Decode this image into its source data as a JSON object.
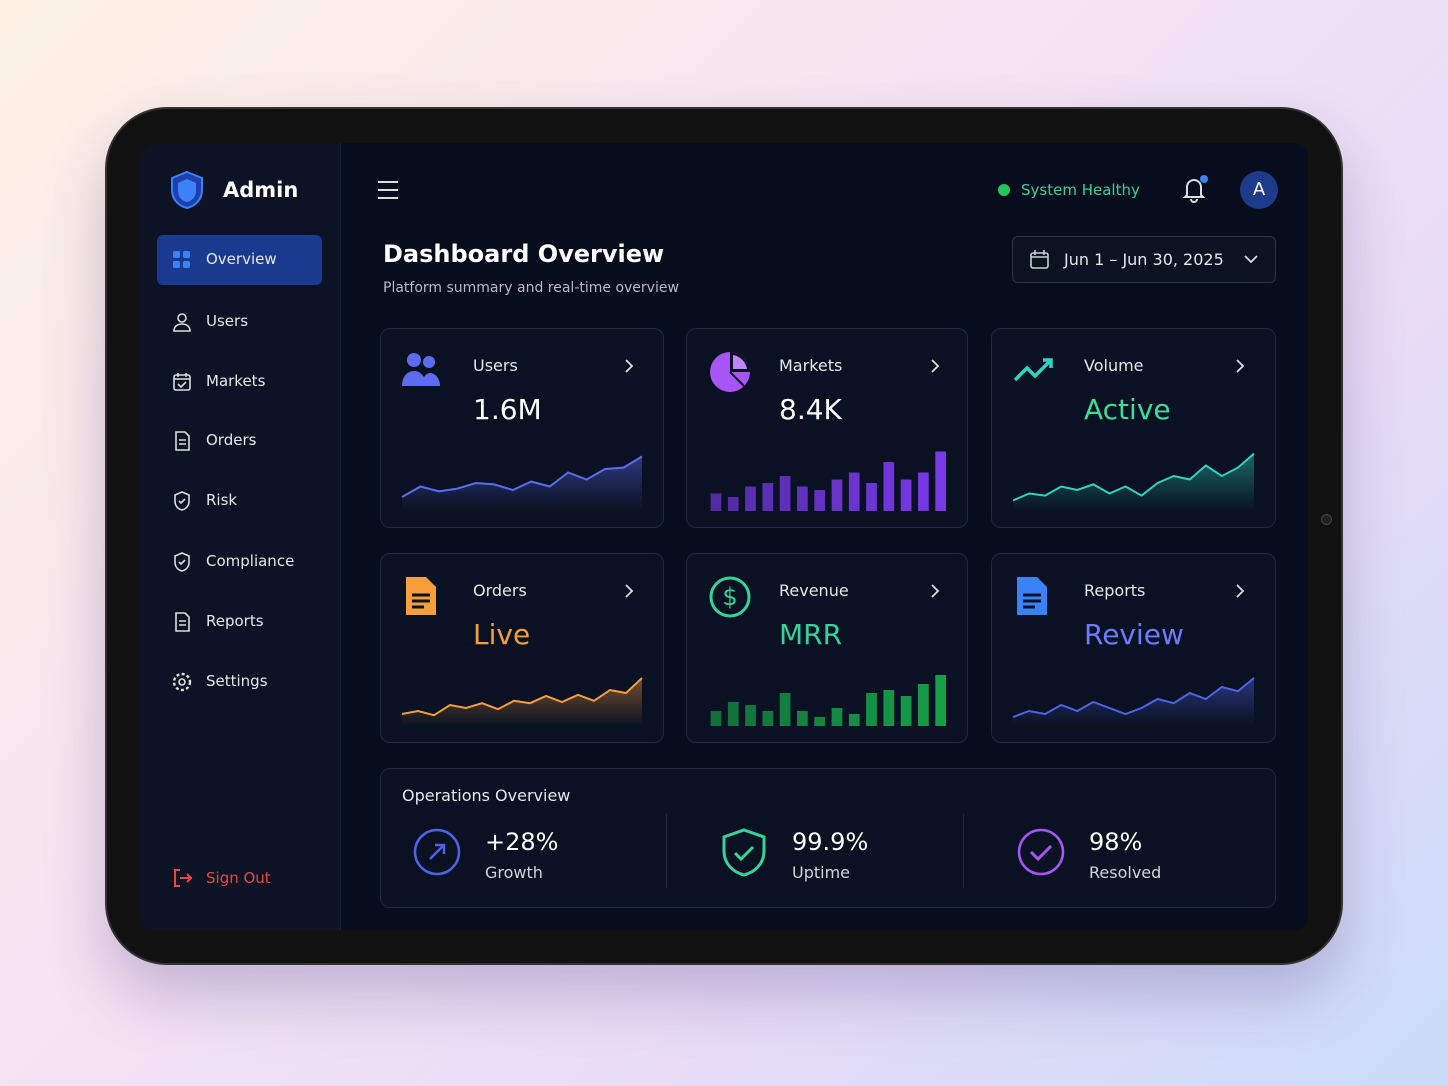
{
  "sidebar": {
    "brand": "Admin",
    "nav": [
      "Overview",
      "Users",
      "Markets",
      "Orders",
      "Risk",
      "Compliance",
      "Reports",
      "Settings"
    ],
    "active": 0,
    "sign_out": "Sign Out"
  },
  "topbar": {
    "status": "System Healthy",
    "avatar": "A"
  },
  "header": {
    "title": "Dashboard Overview",
    "subtitle": "Platform summary and real-time overview",
    "date_range": "Jun 1 – Jun 30, 2025"
  },
  "cards": [
    {
      "label": "Users",
      "value": "1.6M",
      "value_color": "#ffffff",
      "chart": "line",
      "color": "#5b6cf0",
      "values": [
        20,
        35,
        28,
        32,
        40,
        38,
        30,
        42,
        35,
        55,
        45,
        60,
        62,
        78
      ]
    },
    {
      "label": "Markets",
      "value": "8.4K",
      "value_color": "#ffffff",
      "chart": "bar",
      "color": "#7c3aed",
      "values": [
        25,
        20,
        35,
        40,
        50,
        35,
        30,
        45,
        55,
        40,
        70,
        45,
        55,
        85
      ]
    },
    {
      "label": "Volume",
      "value": "Active",
      "value_color": "#3ddc97",
      "chart": "line",
      "color": "#2dd4bf",
      "values": [
        15,
        25,
        22,
        35,
        30,
        38,
        25,
        35,
        22,
        40,
        50,
        45,
        65,
        50,
        62,
        82
      ]
    },
    {
      "label": "Orders",
      "value": "Live",
      "value_color": "#f59e3b",
      "chart": "line",
      "color": "#f59e3b",
      "values": [
        20,
        25,
        18,
        35,
        30,
        38,
        28,
        42,
        38,
        50,
        40,
        52,
        42,
        60,
        55,
        80
      ]
    },
    {
      "label": "Revenue",
      "value": "MRR",
      "value_color": "#34d399",
      "chart": "bar",
      "color": "#16a34a",
      "values": [
        25,
        40,
        35,
        25,
        55,
        25,
        15,
        30,
        20,
        55,
        60,
        50,
        70,
        85
      ]
    },
    {
      "label": "Reports",
      "value": "Review",
      "value_color": "#6b7cff",
      "chart": "line",
      "color": "#4f63e8",
      "values": [
        15,
        25,
        20,
        35,
        25,
        40,
        30,
        20,
        30,
        45,
        38,
        55,
        45,
        65,
        58,
        80
      ]
    }
  ],
  "operations": {
    "title": "Operations Overview",
    "stats": [
      {
        "value": "+28%",
        "label": "Growth",
        "color": "#4f63e8"
      },
      {
        "value": "99.9%",
        "label": "Uptime",
        "color": "#34d399"
      },
      {
        "value": "98%",
        "label": "Resolved",
        "color": "#a855f7"
      }
    ]
  }
}
